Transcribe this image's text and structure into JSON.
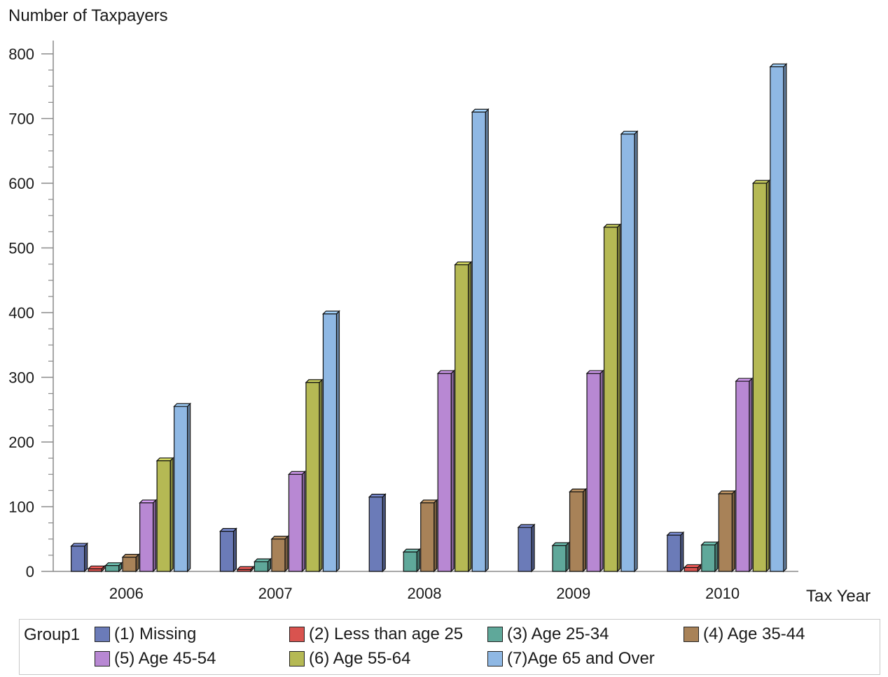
{
  "chart_data": {
    "type": "bar",
    "ylabel": "Number of Taxpayers",
    "xlabel": "Tax Year",
    "ylim": [
      0,
      800
    ],
    "yticks": [
      0,
      100,
      200,
      300,
      400,
      500,
      600,
      700,
      800
    ],
    "categories": [
      "2006",
      "2007",
      "2008",
      "2009",
      "2010"
    ],
    "grid": false,
    "legend_title": "Group1",
    "legend_position": "bottom",
    "series": [
      {
        "name": "(1) Missing",
        "color": "#6b7bb8",
        "values": [
          39,
          62,
          115,
          68,
          56
        ]
      },
      {
        "name": "(2) Less than age 25",
        "color": "#d9534f",
        "values": [
          4,
          3,
          0,
          0,
          6
        ]
      },
      {
        "name": "(3) Age 25-34",
        "color": "#5fa89a",
        "values": [
          9,
          15,
          30,
          40,
          41
        ]
      },
      {
        "name": "(4) Age 35-44",
        "color": "#a88258",
        "values": [
          22,
          50,
          106,
          123,
          120
        ]
      },
      {
        "name": "(5) Age 45-54",
        "color": "#b888d3",
        "values": [
          106,
          150,
          306,
          306,
          294
        ]
      },
      {
        "name": "(6) Age 55-64",
        "color": "#b5b954",
        "values": [
          171,
          292,
          474,
          532,
          600
        ]
      },
      {
        "name": "(7)Age 65 and Over",
        "color": "#8fb8e4",
        "values": [
          255,
          398,
          710,
          676,
          780
        ]
      }
    ]
  }
}
